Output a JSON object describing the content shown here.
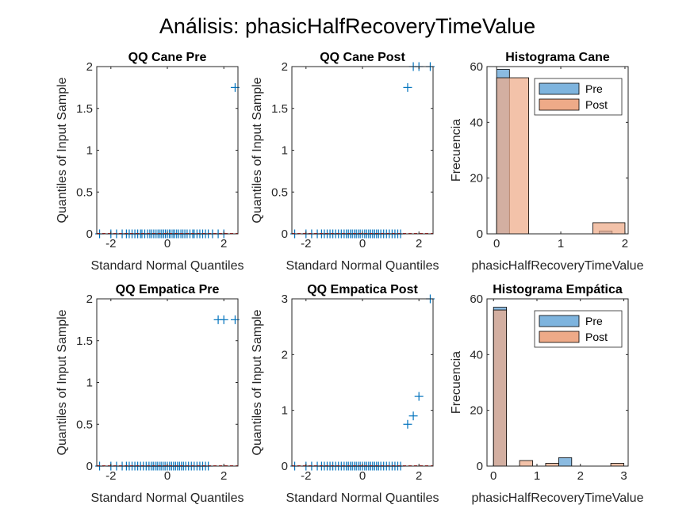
{
  "title": "Análisis: phasicHalfRecoveryTimeValue",
  "colors": {
    "pre": "#0072BD",
    "pre_fill": "#7EB4DE",
    "post_fill": "#EEAA88",
    "post_line": "#D95319",
    "axis": "#262626"
  },
  "chart_data": [
    {
      "id": "qq-cane-pre",
      "type": "scatter",
      "title": "QQ Cane Pre",
      "xlabel": "Standard Normal Quantiles",
      "ylabel": "Quantiles of Input Sample",
      "xlim": [
        -2.5,
        2.5
      ],
      "ylim": [
        0,
        2
      ],
      "xticks": [
        -2,
        0,
        2
      ],
      "yticks": [
        0,
        0.5,
        1,
        1.5,
        2
      ],
      "xtick_labels": [
        "-2",
        "0",
        "2"
      ],
      "ytick_labels": [
        "0",
        "0.5",
        "1",
        "1.5",
        "2"
      ],
      "marker": "+",
      "points": [
        [
          -2.4,
          0
        ],
        [
          -2.0,
          0
        ],
        [
          -1.8,
          0
        ],
        [
          -1.6,
          0
        ],
        [
          -1.45,
          0
        ],
        [
          -1.35,
          0
        ],
        [
          -1.25,
          0
        ],
        [
          -1.15,
          0
        ],
        [
          -1.05,
          0
        ],
        [
          -0.95,
          0
        ],
        [
          -0.9,
          0
        ],
        [
          -0.8,
          0
        ],
        [
          -0.7,
          0
        ],
        [
          -0.62,
          0
        ],
        [
          -0.55,
          0
        ],
        [
          -0.48,
          0
        ],
        [
          -0.4,
          0
        ],
        [
          -0.33,
          0
        ],
        [
          -0.26,
          0
        ],
        [
          -0.2,
          0
        ],
        [
          -0.13,
          0
        ],
        [
          -0.07,
          0
        ],
        [
          0,
          0
        ],
        [
          0.07,
          0
        ],
        [
          0.13,
          0
        ],
        [
          0.2,
          0
        ],
        [
          0.26,
          0
        ],
        [
          0.33,
          0
        ],
        [
          0.4,
          0
        ],
        [
          0.48,
          0
        ],
        [
          0.55,
          0
        ],
        [
          0.62,
          0
        ],
        [
          0.7,
          0
        ],
        [
          0.8,
          0
        ],
        [
          0.9,
          0
        ],
        [
          0.95,
          0
        ],
        [
          1.05,
          0
        ],
        [
          1.15,
          0
        ],
        [
          1.25,
          0
        ],
        [
          1.35,
          0
        ],
        [
          1.45,
          0
        ],
        [
          1.6,
          0
        ],
        [
          1.8,
          0
        ],
        [
          2.0,
          0
        ],
        [
          2.4,
          1.75
        ]
      ]
    },
    {
      "id": "qq-cane-post",
      "type": "scatter",
      "title": "QQ Cane Post",
      "xlabel": "Standard Normal Quantiles",
      "ylabel": "Quantiles of Input Sample",
      "xlim": [
        -2.5,
        2.5
      ],
      "ylim": [
        0,
        2
      ],
      "xticks": [
        -2,
        0,
        2
      ],
      "yticks": [
        0,
        0.5,
        1,
        1.5,
        2
      ],
      "xtick_labels": [
        "-2",
        "0",
        "2"
      ],
      "ytick_labels": [
        "0",
        "0.5",
        "1",
        "1.5",
        "2"
      ],
      "marker": "+",
      "points": [
        [
          -2.4,
          0
        ],
        [
          -2.0,
          0
        ],
        [
          -1.8,
          0
        ],
        [
          -1.6,
          0
        ],
        [
          -1.45,
          0
        ],
        [
          -1.35,
          0
        ],
        [
          -1.25,
          0
        ],
        [
          -1.15,
          0
        ],
        [
          -1.05,
          0
        ],
        [
          -0.95,
          0
        ],
        [
          -0.85,
          0
        ],
        [
          -0.75,
          0
        ],
        [
          -0.65,
          0
        ],
        [
          -0.57,
          0
        ],
        [
          -0.5,
          0
        ],
        [
          -0.43,
          0
        ],
        [
          -0.36,
          0
        ],
        [
          -0.29,
          0
        ],
        [
          -0.22,
          0
        ],
        [
          -0.15,
          0
        ],
        [
          -0.08,
          0
        ],
        [
          0,
          0
        ],
        [
          0.08,
          0
        ],
        [
          0.15,
          0
        ],
        [
          0.22,
          0
        ],
        [
          0.29,
          0
        ],
        [
          0.36,
          0
        ],
        [
          0.43,
          0
        ],
        [
          0.5,
          0
        ],
        [
          0.57,
          0
        ],
        [
          0.65,
          0
        ],
        [
          0.75,
          0
        ],
        [
          0.85,
          0
        ],
        [
          0.95,
          0
        ],
        [
          1.05,
          0
        ],
        [
          1.15,
          0
        ],
        [
          1.25,
          0
        ],
        [
          1.35,
          0
        ],
        [
          1.6,
          1.75
        ],
        [
          1.8,
          2
        ],
        [
          2.0,
          2
        ],
        [
          2.4,
          2
        ]
      ]
    },
    {
      "id": "hist-cane",
      "type": "bar",
      "title": "Histograma Cane",
      "xlabel": "phasicHalfRecoveryTimeValue",
      "ylabel": "Frecuencia",
      "xlim": [
        -0.15,
        2.05
      ],
      "ylim": [
        0,
        60
      ],
      "xticks": [
        0,
        1,
        2
      ],
      "yticks": [
        0,
        20,
        40,
        60
      ],
      "xtick_labels": [
        "0",
        "1",
        "2"
      ],
      "ytick_labels": [
        "0",
        "20",
        "40",
        "60"
      ],
      "legend": {
        "placement": "top-right",
        "entries": [
          "Pre",
          "Post"
        ]
      },
      "series": [
        {
          "name": "Pre",
          "bins": [
            [
              0,
              0.2,
              59
            ],
            [
              1.6,
              1.8,
              1
            ]
          ]
        },
        {
          "name": "Post",
          "bins": [
            [
              0,
              0.5,
              56
            ],
            [
              1.5,
              2.0,
              4
            ]
          ]
        }
      ]
    },
    {
      "id": "qq-empatica-pre",
      "type": "scatter",
      "title": "QQ Empatica Pre",
      "xlabel": "Standard Normal Quantiles",
      "ylabel": "Quantiles of Input Sample",
      "xlim": [
        -2.5,
        2.5
      ],
      "ylim": [
        0,
        2
      ],
      "xticks": [
        -2,
        0,
        2
      ],
      "yticks": [
        0,
        0.5,
        1,
        1.5,
        2
      ],
      "xtick_labels": [
        "-2",
        "0",
        "2"
      ],
      "ytick_labels": [
        "0",
        "0.5",
        "1",
        "1.5",
        "2"
      ],
      "marker": "+",
      "points": [
        [
          -2.4,
          0
        ],
        [
          -2.0,
          0
        ],
        [
          -1.8,
          0
        ],
        [
          -1.6,
          0
        ],
        [
          -1.45,
          0
        ],
        [
          -1.35,
          0
        ],
        [
          -1.25,
          0
        ],
        [
          -1.15,
          0
        ],
        [
          -1.05,
          0
        ],
        [
          -0.95,
          0
        ],
        [
          -0.85,
          0
        ],
        [
          -0.75,
          0
        ],
        [
          -0.65,
          0
        ],
        [
          -0.57,
          0
        ],
        [
          -0.5,
          0
        ],
        [
          -0.43,
          0
        ],
        [
          -0.36,
          0
        ],
        [
          -0.29,
          0
        ],
        [
          -0.22,
          0
        ],
        [
          -0.15,
          0
        ],
        [
          -0.08,
          0
        ],
        [
          0,
          0
        ],
        [
          0.08,
          0
        ],
        [
          0.15,
          0
        ],
        [
          0.22,
          0
        ],
        [
          0.29,
          0
        ],
        [
          0.36,
          0
        ],
        [
          0.43,
          0
        ],
        [
          0.5,
          0
        ],
        [
          0.57,
          0
        ],
        [
          0.65,
          0
        ],
        [
          0.75,
          0
        ],
        [
          0.85,
          0
        ],
        [
          0.95,
          0
        ],
        [
          1.05,
          0
        ],
        [
          1.15,
          0
        ],
        [
          1.25,
          0
        ],
        [
          1.35,
          0
        ],
        [
          1.45,
          0
        ],
        [
          1.8,
          1.75
        ],
        [
          2.0,
          1.75
        ],
        [
          2.4,
          1.75
        ]
      ]
    },
    {
      "id": "qq-empatica-post",
      "type": "scatter",
      "title": "QQ Empatica Post",
      "xlabel": "Standard Normal Quantiles",
      "ylabel": "Quantiles of Input Sample",
      "xlim": [
        -2.5,
        2.5
      ],
      "ylim": [
        0,
        3
      ],
      "xticks": [
        -2,
        0,
        2
      ],
      "yticks": [
        0,
        1,
        2,
        3
      ],
      "xtick_labels": [
        "-2",
        "0",
        "2"
      ],
      "ytick_labels": [
        "0",
        "1",
        "2",
        "3"
      ],
      "marker": "+",
      "points": [
        [
          -2.4,
          0
        ],
        [
          -2.0,
          0
        ],
        [
          -1.8,
          0
        ],
        [
          -1.6,
          0
        ],
        [
          -1.45,
          0
        ],
        [
          -1.35,
          0
        ],
        [
          -1.25,
          0
        ],
        [
          -1.15,
          0
        ],
        [
          -1.05,
          0
        ],
        [
          -0.95,
          0
        ],
        [
          -0.85,
          0
        ],
        [
          -0.75,
          0
        ],
        [
          -0.65,
          0
        ],
        [
          -0.57,
          0
        ],
        [
          -0.5,
          0
        ],
        [
          -0.43,
          0
        ],
        [
          -0.36,
          0
        ],
        [
          -0.29,
          0
        ],
        [
          -0.22,
          0
        ],
        [
          -0.15,
          0
        ],
        [
          -0.08,
          0
        ],
        [
          0,
          0
        ],
        [
          0.08,
          0
        ],
        [
          0.15,
          0
        ],
        [
          0.22,
          0
        ],
        [
          0.29,
          0
        ],
        [
          0.36,
          0
        ],
        [
          0.43,
          0
        ],
        [
          0.5,
          0
        ],
        [
          0.57,
          0
        ],
        [
          0.65,
          0
        ],
        [
          0.75,
          0
        ],
        [
          0.85,
          0
        ],
        [
          0.95,
          0
        ],
        [
          1.05,
          0
        ],
        [
          1.15,
          0
        ],
        [
          1.25,
          0
        ],
        [
          1.35,
          0
        ],
        [
          1.6,
          0.75
        ],
        [
          1.8,
          0.9
        ],
        [
          2.0,
          1.25
        ],
        [
          2.4,
          3
        ]
      ]
    },
    {
      "id": "hist-empatica",
      "type": "bar",
      "title": "Histograma Empática",
      "xlabel": "phasicHalfRecoveryTimeValue",
      "ylabel": "Frecuencia",
      "xlim": [
        -0.15,
        3.1
      ],
      "ylim": [
        0,
        60
      ],
      "xticks": [
        0,
        1,
        2,
        3
      ],
      "yticks": [
        0,
        20,
        40,
        60
      ],
      "xtick_labels": [
        "0",
        "1",
        "2",
        "3"
      ],
      "ytick_labels": [
        "0",
        "20",
        "40",
        "60"
      ],
      "legend": {
        "placement": "top-right",
        "entries": [
          "Pre",
          "Post"
        ]
      },
      "series": [
        {
          "name": "Pre",
          "bins": [
            [
              0,
              0.3,
              57
            ],
            [
              1.5,
              1.8,
              3
            ]
          ]
        },
        {
          "name": "Post",
          "bins": [
            [
              0,
              0.3,
              56
            ],
            [
              0.6,
              0.9,
              2
            ],
            [
              1.2,
              1.5,
              1
            ],
            [
              2.7,
              3.0,
              1
            ]
          ]
        }
      ]
    }
  ]
}
